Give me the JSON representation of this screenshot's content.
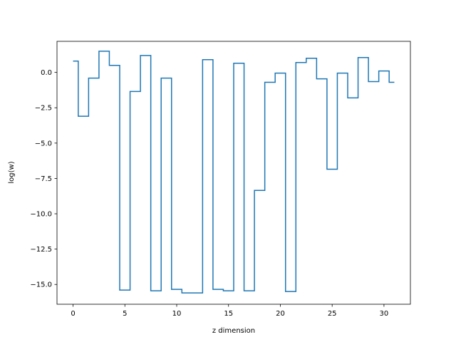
{
  "chart_data": {
    "type": "line",
    "drawstyle": "steps-mid",
    "title": "",
    "xlabel": "z dimension",
    "ylabel": "log(w)",
    "xlim": [
      -1.55,
      32.55
    ],
    "ylim": [
      -16.4,
      2.2
    ],
    "xticks": [
      0,
      5,
      10,
      15,
      20,
      25,
      30
    ],
    "xtick_labels": [
      "0",
      "5",
      "10",
      "15",
      "20",
      "25",
      "30"
    ],
    "yticks": [
      0.0,
      -2.5,
      -5.0,
      -7.5,
      -10.0,
      -12.5,
      -15.0
    ],
    "ytick_labels": [
      "0.0",
      "−2.5",
      "−5.0",
      "−7.5",
      "−10.0",
      "−12.5",
      "−15.0"
    ],
    "grid": false,
    "legend": false,
    "series": [
      {
        "color": "#1f77b4",
        "x": [
          0,
          1,
          2,
          3,
          4,
          5,
          6,
          7,
          8,
          9,
          10,
          11,
          12,
          13,
          14,
          15,
          16,
          17,
          18,
          19,
          20,
          21,
          22,
          23,
          24,
          25,
          26,
          27,
          28,
          29,
          30,
          31
        ],
        "y": [
          0.8,
          -3.1,
          -0.4,
          1.5,
          0.5,
          -15.4,
          -1.35,
          1.2,
          -15.45,
          -0.4,
          -15.35,
          -15.6,
          -15.6,
          0.9,
          -15.35,
          -15.45,
          0.65,
          -15.45,
          -8.35,
          -0.7,
          -0.05,
          -15.5,
          0.7,
          1.0,
          -0.45,
          -6.85,
          -0.05,
          -1.8,
          1.05,
          -0.65,
          0.1,
          -0.7
        ]
      }
    ]
  }
}
